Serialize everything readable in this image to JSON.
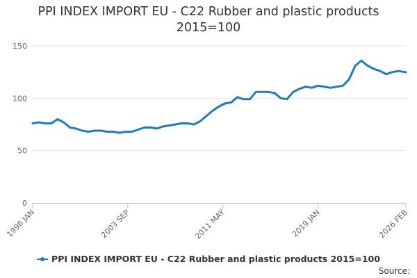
{
  "chart_data": {
    "type": "line",
    "title_lines": [
      "PPI INDEX IMPORT EU - C22 Rubber and plastic products",
      "2015=100"
    ],
    "xlabel": "",
    "ylabel": "",
    "x_tick_labels": [
      "1996 JAN",
      "2003 SEP",
      "2011 MAY",
      "2019 JAN",
      "2026 FEB"
    ],
    "x_ticks": [
      1996.0,
      2003.667,
      2011.333,
      2019.0,
      2026.083
    ],
    "xlim": [
      1996.0,
      2026.083
    ],
    "y_ticks": [
      0,
      50,
      100,
      150
    ],
    "ylim": [
      0,
      150
    ],
    "grid": "horizontal",
    "legend_position": "bottom",
    "series": [
      {
        "name": "PPI INDEX IMPORT EU - C22 Rubber and plastic products 2015=100",
        "color": "#1f7bb6",
        "x": [
          1996.0,
          1996.5,
          1997.0,
          1997.5,
          1998.0,
          1998.5,
          1999.0,
          1999.5,
          2000.0,
          2000.5,
          2001.0,
          2001.5,
          2002.0,
          2002.5,
          2003.0,
          2003.5,
          2004.0,
          2004.5,
          2005.0,
          2005.5,
          2006.0,
          2006.5,
          2007.0,
          2007.5,
          2008.0,
          2008.5,
          2009.0,
          2009.5,
          2010.0,
          2010.5,
          2011.0,
          2011.5,
          2012.0,
          2012.5,
          2013.0,
          2013.5,
          2014.0,
          2014.5,
          2015.0,
          2015.5,
          2016.0,
          2016.5,
          2017.0,
          2017.5,
          2018.0,
          2018.5,
          2019.0,
          2019.5,
          2020.0,
          2020.5,
          2021.0,
          2021.5,
          2022.0,
          2022.5,
          2023.0,
          2023.5,
          2024.0,
          2024.5,
          2025.0,
          2025.5,
          2026.0,
          2026.083
        ],
        "values": [
          76,
          77,
          76,
          76,
          80,
          77,
          72,
          71,
          69,
          68,
          69,
          69,
          68,
          68,
          67,
          68,
          68,
          70,
          72,
          72,
          71,
          73,
          74,
          75,
          76,
          76,
          75,
          78,
          83,
          88,
          92,
          95,
          96,
          101,
          99,
          99,
          106,
          106,
          106,
          105,
          100,
          99,
          106,
          109,
          111,
          110,
          112,
          111,
          110,
          111,
          112,
          118,
          131,
          136,
          131,
          128,
          126,
          123,
          125,
          126,
          125,
          125
        ]
      }
    ]
  },
  "legend": {
    "label": "PPI INDEX IMPORT EU - C22 Rubber and plastic products 2015=100"
  },
  "source": {
    "label": "Source:"
  }
}
